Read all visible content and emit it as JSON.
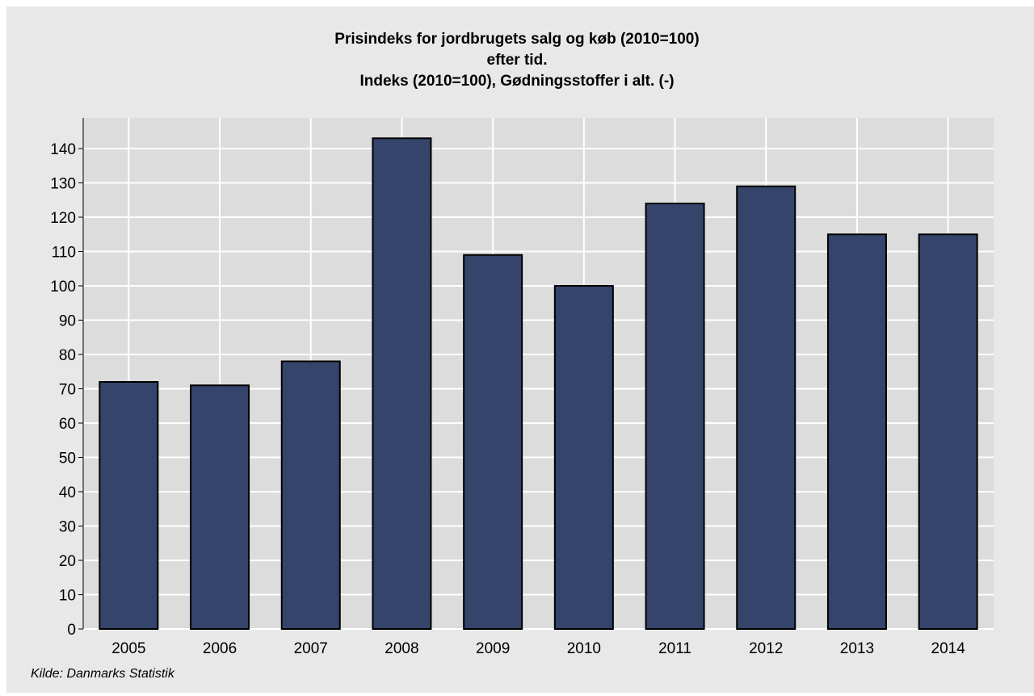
{
  "chart_data": {
    "type": "bar",
    "title_lines": [
      "Prisindeks for jordbrugets salg og køb (2010=100)",
      "efter tid.",
      "Indeks (2010=100), Gødningsstoffer i alt. (-)"
    ],
    "categories": [
      "2005",
      "2006",
      "2007",
      "2008",
      "2009",
      "2010",
      "2011",
      "2012",
      "2013",
      "2014"
    ],
    "values": [
      72,
      71,
      78,
      143,
      109,
      100,
      124,
      129,
      115,
      115
    ],
    "ylim": [
      0,
      140
    ],
    "yticks": [
      0,
      10,
      20,
      30,
      40,
      50,
      60,
      70,
      80,
      90,
      100,
      110,
      120,
      130,
      140
    ],
    "xlabel": "",
    "ylabel": "",
    "grid": true,
    "legend": "none",
    "bar_color": "#34446a",
    "plot_background": "#dcdcdc",
    "frame_background": "#e8e8e8",
    "source": "Kilde: Danmarks Statistik"
  }
}
